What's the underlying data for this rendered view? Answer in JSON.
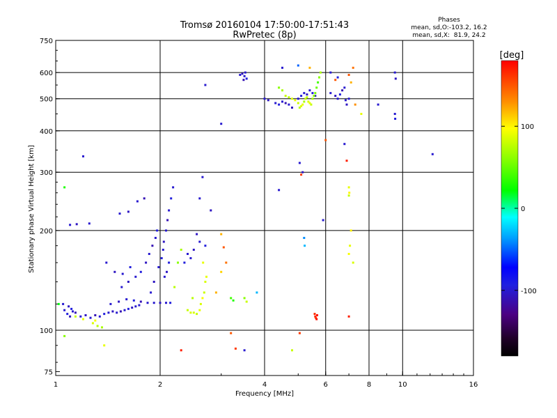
{
  "chart_data": {
    "type": "scatter",
    "title": "Tromsø 20160104 17:50:00-17:51:43",
    "subtitle": "RwPretec (8p)",
    "stats": {
      "heading": "Phases",
      "line1": "mean, sd,O:-103.2, 16.2",
      "line2": "mean, sd,X:  81.9, 24.2"
    },
    "xlabel": "Frequency [MHz]",
    "ylabel": "Stationary phase Virtual Height [km]",
    "x_scale": "log",
    "y_scale": "log",
    "xlim": [
      1,
      16
    ],
    "ylim": [
      73,
      750
    ],
    "x_ticks": [
      1,
      2,
      4,
      6,
      8,
      10,
      16
    ],
    "y_ticks": [
      75,
      100,
      200,
      300,
      400,
      500,
      600,
      750
    ],
    "x_grid": [
      2,
      4,
      6,
      8,
      10
    ],
    "y_grid": [
      100,
      200,
      300,
      400,
      500,
      600
    ],
    "colorbar": {
      "label": "[deg]",
      "range": [
        -180,
        180
      ],
      "ticks": [
        100,
        0,
        -100
      ]
    },
    "points": [
      [
        1.06,
        115,
        -100
      ],
      [
        1.08,
        112,
        -95
      ],
      [
        1.1,
        110,
        -105
      ],
      [
        1.12,
        114,
        -100
      ],
      [
        1.14,
        113,
        -110
      ],
      [
        1.05,
        120,
        -100
      ],
      [
        1.09,
        118,
        -105
      ],
      [
        1.11,
        116,
        -95
      ],
      [
        1.18,
        110,
        -100
      ],
      [
        1.22,
        111,
        -105
      ],
      [
        1.26,
        109,
        -100
      ],
      [
        1.3,
        111,
        -110
      ],
      [
        1.34,
        110,
        -100
      ],
      [
        1.38,
        112,
        -95
      ],
      [
        1.42,
        113,
        -100
      ],
      [
        1.46,
        114,
        -105
      ],
      [
        1.5,
        113,
        -100
      ],
      [
        1.54,
        114,
        -110
      ],
      [
        1.58,
        115,
        -100
      ],
      [
        1.62,
        116,
        -95
      ],
      [
        1.66,
        117,
        -105
      ],
      [
        1.7,
        118,
        -100
      ],
      [
        1.74,
        119,
        -100
      ],
      [
        1.44,
        120,
        -100
      ],
      [
        1.52,
        122,
        -105
      ],
      [
        1.6,
        124,
        -100
      ],
      [
        1.68,
        123,
        -95
      ],
      [
        1.76,
        122,
        -110
      ],
      [
        1.84,
        121,
        -100
      ],
      [
        1.92,
        121,
        -100
      ],
      [
        2.0,
        121,
        -105
      ],
      [
        2.08,
        121,
        -100
      ],
      [
        2.14,
        121,
        -95
      ],
      [
        1.55,
        135,
        -100
      ],
      [
        1.62,
        140,
        -105
      ],
      [
        1.7,
        145,
        -100
      ],
      [
        1.76,
        150,
        -95
      ],
      [
        1.82,
        160,
        -105
      ],
      [
        1.86,
        170,
        -100
      ],
      [
        1.9,
        180,
        -110
      ],
      [
        1.94,
        190,
        -100
      ],
      [
        1.96,
        200,
        -95
      ],
      [
        1.88,
        130,
        -100
      ],
      [
        1.92,
        140,
        -105
      ],
      [
        1.98,
        155,
        -100
      ],
      [
        2.02,
        165,
        -95
      ],
      [
        2.05,
        185,
        -105
      ],
      [
        2.08,
        200,
        -100
      ],
      [
        2.1,
        215,
        -110
      ],
      [
        2.12,
        230,
        -100
      ],
      [
        2.15,
        250,
        -95
      ],
      [
        2.18,
        270,
        -100
      ],
      [
        2.06,
        145,
        -100
      ],
      [
        2.09,
        150,
        -105
      ],
      [
        2.12,
        160,
        -95
      ],
      [
        2.04,
        175,
        -100
      ],
      [
        1.4,
        160,
        -100
      ],
      [
        1.48,
        150,
        -105
      ],
      [
        1.56,
        148,
        -100
      ],
      [
        1.64,
        155,
        -95
      ],
      [
        1.1,
        208,
        -100
      ],
      [
        1.15,
        209,
        -105
      ],
      [
        1.25,
        210,
        -100
      ],
      [
        1.2,
        335,
        -100
      ],
      [
        1.53,
        225,
        -100
      ],
      [
        1.62,
        228,
        -105
      ],
      [
        1.72,
        245,
        -100
      ],
      [
        1.8,
        250,
        -110
      ],
      [
        2.4,
        170,
        -100
      ],
      [
        2.5,
        175,
        -105
      ],
      [
        2.6,
        185,
        -100
      ],
      [
        2.7,
        180,
        -95
      ],
      [
        2.55,
        195,
        -105
      ],
      [
        2.45,
        165,
        -100
      ],
      [
        2.35,
        160,
        -95
      ],
      [
        2.6,
        250,
        -100
      ],
      [
        2.8,
        230,
        -105
      ],
      [
        2.65,
        290,
        -100
      ],
      [
        1.14,
        110,
        80
      ],
      [
        1.2,
        108,
        90
      ],
      [
        1.28,
        105,
        85
      ],
      [
        1.32,
        103,
        75
      ],
      [
        1.36,
        102,
        70
      ],
      [
        1.3,
        107,
        95
      ],
      [
        2.5,
        113,
        85
      ],
      [
        2.55,
        112,
        80
      ],
      [
        2.6,
        115,
        90
      ],
      [
        2.62,
        120,
        85
      ],
      [
        2.65,
        125,
        95
      ],
      [
        2.68,
        130,
        80
      ],
      [
        2.7,
        140,
        85
      ],
      [
        2.72,
        145,
        90
      ],
      [
        2.4,
        115,
        80
      ],
      [
        2.45,
        113,
        85
      ],
      [
        2.48,
        125,
        75
      ],
      [
        2.66,
        160,
        90
      ],
      [
        2.3,
        175,
        70
      ],
      [
        2.25,
        160,
        60
      ],
      [
        2.2,
        135,
        75
      ],
      [
        1.06,
        270,
        30
      ],
      [
        1.02,
        120,
        20
      ],
      [
        1.06,
        96,
        60
      ],
      [
        3.0,
        195,
        120
      ],
      [
        3.05,
        178,
        150
      ],
      [
        3.1,
        160,
        140
      ],
      [
        3.0,
        150,
        110
      ],
      [
        2.9,
        130,
        120
      ],
      [
        3.2,
        125,
        40
      ],
      [
        3.25,
        123,
        30
      ],
      [
        3.5,
        125,
        60
      ],
      [
        3.55,
        122,
        80
      ],
      [
        3.8,
        130,
        -30
      ],
      [
        3.0,
        420,
        -100
      ],
      [
        2.7,
        550,
        -100
      ],
      [
        3.4,
        590,
        -100
      ],
      [
        3.45,
        595,
        -105
      ],
      [
        3.5,
        585,
        -100
      ],
      [
        3.55,
        575,
        -95
      ],
      [
        3.48,
        570,
        -110
      ],
      [
        3.52,
        600,
        -100
      ],
      [
        4.0,
        500,
        -100
      ],
      [
        4.1,
        495,
        -105
      ],
      [
        4.3,
        485,
        -100
      ],
      [
        4.4,
        480,
        -95
      ],
      [
        4.5,
        490,
        -100
      ],
      [
        4.6,
        485,
        -110
      ],
      [
        4.7,
        480,
        -100
      ],
      [
        4.8,
        470,
        -105
      ],
      [
        5.0,
        500,
        -100
      ],
      [
        5.1,
        510,
        -95
      ],
      [
        5.2,
        520,
        -100
      ],
      [
        5.3,
        515,
        -105
      ],
      [
        5.4,
        530,
        -100
      ],
      [
        5.5,
        520,
        -95
      ],
      [
        5.6,
        510,
        -100
      ],
      [
        6.2,
        520,
        -100
      ],
      [
        6.4,
        510,
        -105
      ],
      [
        6.5,
        500,
        -100
      ],
      [
        6.6,
        515,
        -95
      ],
      [
        6.7,
        530,
        -110
      ],
      [
        6.8,
        540,
        -100
      ],
      [
        6.85,
        495,
        -100
      ],
      [
        6.9,
        480,
        -105
      ],
      [
        7.0,
        500,
        -100
      ],
      [
        4.4,
        540,
        60
      ],
      [
        4.5,
        530,
        70
      ],
      [
        4.6,
        510,
        80
      ],
      [
        4.7,
        505,
        75
      ],
      [
        4.8,
        500,
        85
      ],
      [
        4.9,
        495,
        90
      ],
      [
        5.0,
        485,
        80
      ],
      [
        5.05,
        470,
        75
      ],
      [
        5.1,
        475,
        85
      ],
      [
        5.15,
        480,
        90
      ],
      [
        5.2,
        490,
        70
      ],
      [
        5.25,
        500,
        80
      ],
      [
        5.3,
        505,
        75
      ],
      [
        5.35,
        490,
        85
      ],
      [
        5.4,
        485,
        90
      ],
      [
        5.45,
        480,
        80
      ],
      [
        5.5,
        500,
        70
      ],
      [
        5.55,
        510,
        60
      ],
      [
        5.6,
        520,
        55
      ],
      [
        5.65,
        540,
        50
      ],
      [
        5.7,
        560,
        40
      ],
      [
        5.75,
        580,
        60
      ],
      [
        5.8,
        600,
        70
      ],
      [
        5.4,
        620,
        120
      ],
      [
        6.2,
        600,
        -100
      ],
      [
        6.5,
        580,
        -95
      ],
      [
        6.4,
        570,
        150
      ],
      [
        7.0,
        590,
        150
      ],
      [
        7.2,
        620,
        140
      ],
      [
        7.1,
        560,
        120
      ],
      [
        7.3,
        480,
        130
      ],
      [
        7.6,
        450,
        90
      ],
      [
        5.0,
        630,
        -50
      ],
      [
        4.5,
        620,
        -100
      ],
      [
        9.5,
        600,
        -100
      ],
      [
        9.55,
        575,
        -105
      ],
      [
        9.5,
        450,
        -100
      ],
      [
        9.52,
        435,
        -95
      ],
      [
        12.2,
        340,
        -100
      ],
      [
        8.5,
        480,
        -100
      ],
      [
        5.05,
        320,
        -100
      ],
      [
        5.1,
        295,
        160
      ],
      [
        5.15,
        300,
        -105
      ],
      [
        5.2,
        190,
        -40
      ],
      [
        5.22,
        180,
        -30
      ],
      [
        4.4,
        265,
        -100
      ],
      [
        5.9,
        215,
        -100
      ],
      [
        6.0,
        375,
        150
      ],
      [
        6.8,
        365,
        -100
      ],
      [
        6.9,
        325,
        170
      ],
      [
        7.0,
        270,
        90
      ],
      [
        7.02,
        260,
        100
      ],
      [
        7.0,
        255,
        80
      ],
      [
        7.1,
        200,
        100
      ],
      [
        7.05,
        180,
        90
      ],
      [
        7.0,
        170,
        95
      ],
      [
        7.2,
        160,
        85
      ],
      [
        7.0,
        110,
        170
      ],
      [
        5.6,
        110,
        170
      ],
      [
        5.62,
        109,
        160
      ],
      [
        5.65,
        108,
        175
      ],
      [
        5.58,
        112,
        165
      ],
      [
        5.67,
        111,
        175
      ],
      [
        5.05,
        98,
        160
      ],
      [
        4.8,
        87,
        80
      ],
      [
        3.2,
        98,
        150
      ],
      [
        3.3,
        88,
        160
      ],
      [
        3.5,
        87,
        -100
      ],
      [
        2.3,
        87,
        170
      ],
      [
        1.38,
        90,
        90
      ]
    ]
  }
}
